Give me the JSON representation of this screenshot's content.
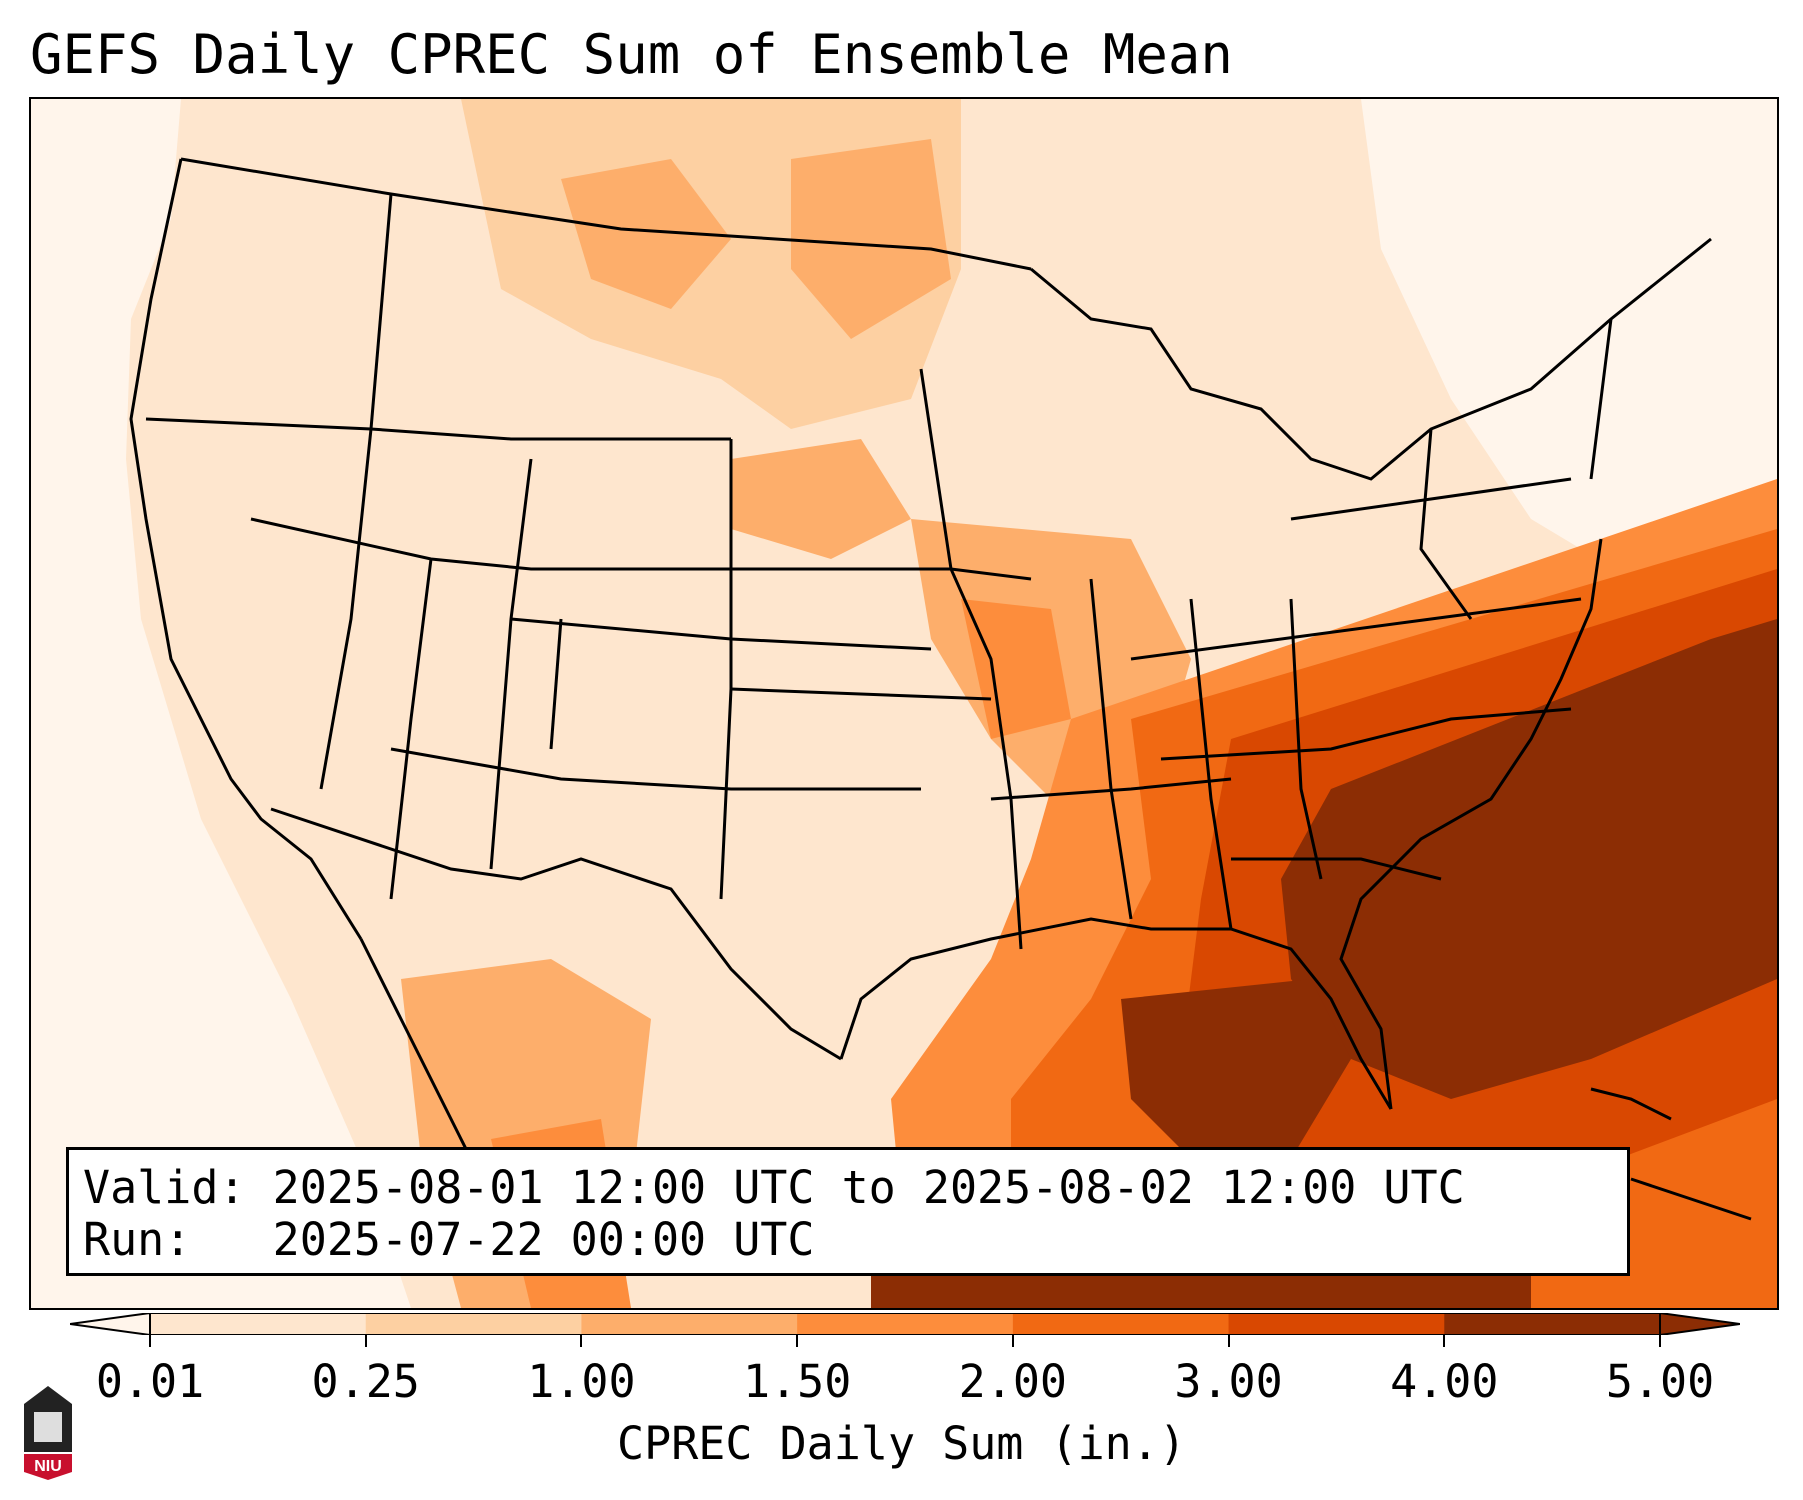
{
  "title": "GEFS Daily CPREC Sum of Ensemble Mean",
  "info": {
    "valid_line": "Valid: 2025-08-01 12:00 UTC to 2025-08-02 12:00 UTC",
    "run_line": "Run:   2025-07-22 00:00 UTC"
  },
  "colorbar": {
    "label": "CPREC Daily Sum (in.)",
    "ticks": [
      "0.01",
      "0.25",
      "1.00",
      "1.50",
      "2.00",
      "3.00",
      "4.00",
      "5.00"
    ],
    "colors": [
      "#fff5eb",
      "#fee6ce",
      "#fdd0a2",
      "#fdae6b",
      "#fd8d3c",
      "#f16913",
      "#d94801",
      "#8c2d04"
    ],
    "extend": "both"
  },
  "logo": {
    "text": "NIU",
    "colors": {
      "tower": "#222222",
      "banner": "#c8102e"
    }
  },
  "map": {
    "projection": "Lambert conformal, CONUS",
    "region": "Contiguous United States, southern Canada, northern Mexico, Gulf of Mexico, western Atlantic"
  }
}
